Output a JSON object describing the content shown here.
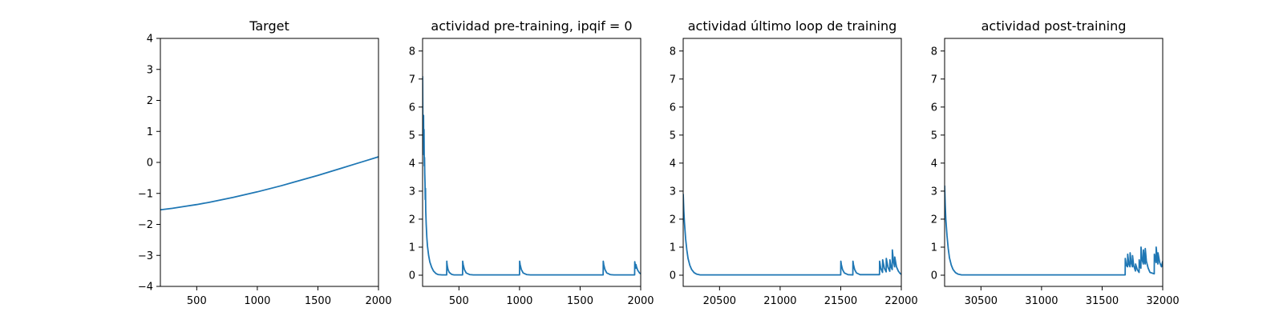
{
  "chart_data": [
    {
      "type": "line",
      "title": "Target",
      "xlim": [
        200,
        2000
      ],
      "ylim": [
        -4,
        4
      ],
      "xticks": [
        500,
        1000,
        1500,
        2000
      ],
      "xtick_labels": [
        "500",
        "1000",
        "1500",
        "2000"
      ],
      "yticks": [
        -4,
        -3,
        -2,
        -1,
        0,
        1,
        2,
        3,
        4
      ],
      "ytick_labels": [
        "−4",
        "−3",
        "−2",
        "−1",
        "0",
        "1",
        "2",
        "3",
        "4"
      ],
      "color": "#1f77b4",
      "series": [
        {
          "x": [
            200,
            300,
            400,
            500,
            600,
            700,
            800,
            900,
            1000,
            1100,
            1200,
            1300,
            1400,
            1500,
            1600,
            1700,
            1800,
            1900,
            2000
          ],
          "y": [
            -1.53,
            -1.48,
            -1.42,
            -1.36,
            -1.29,
            -1.21,
            -1.13,
            -1.04,
            -0.95,
            -0.85,
            -0.75,
            -0.64,
            -0.53,
            -0.42,
            -0.3,
            -0.18,
            -0.06,
            0.06,
            0.18
          ]
        }
      ]
    },
    {
      "type": "line",
      "title": "actividad pre-training, ipqif = 0",
      "xlim": [
        200,
        2000
      ],
      "ylim": [
        -0.4,
        8.45
      ],
      "xticks": [
        500,
        1000,
        1500,
        2000
      ],
      "xtick_labels": [
        "500",
        "1000",
        "1500",
        "2000"
      ],
      "yticks": [
        0,
        1,
        2,
        3,
        4,
        5,
        6,
        7,
        8
      ],
      "ytick_labels": [
        "0",
        "1",
        "2",
        "3",
        "4",
        "5",
        "6",
        "7",
        "8"
      ],
      "color": "#1f77b4",
      "series": [
        {
          "x": [
            200,
            202,
            205,
            208,
            210,
            212,
            214,
            216,
            218,
            220,
            222,
            224,
            226,
            230,
            235,
            240,
            250,
            260,
            275,
            290,
            310,
            330,
            360,
            399,
            400,
            401,
            405,
            410,
            420,
            440,
            460,
            530,
            531,
            535,
            545,
            560,
            590,
            620,
            1000,
            1001,
            1005,
            1015,
            1030,
            1060,
            1090,
            1690,
            1691,
            1695,
            1705,
            1720,
            1750,
            1780,
            1950,
            1951,
            1955,
            1960,
            1961,
            1965,
            1975,
            1990,
            2000
          ],
          "y": [
            7.1,
            5.6,
            4.9,
            5.7,
            4.3,
            5.2,
            3.9,
            4.2,
            3.6,
            3.3,
            2.7,
            3.1,
            2.3,
            1.8,
            1.35,
            1.05,
            0.7,
            0.47,
            0.28,
            0.15,
            0.06,
            0.02,
            0.01,
            0.01,
            0.5,
            0.42,
            0.3,
            0.2,
            0.1,
            0.03,
            0.01,
            0.01,
            0.5,
            0.38,
            0.2,
            0.08,
            0.02,
            0.01,
            0.01,
            0.5,
            0.38,
            0.2,
            0.08,
            0.02,
            0.01,
            0.01,
            0.5,
            0.38,
            0.2,
            0.08,
            0.02,
            0.01,
            0.01,
            0.48,
            0.35,
            0.25,
            0.38,
            0.3,
            0.18,
            0.08,
            0.05
          ]
        }
      ]
    },
    {
      "type": "line",
      "title": "actividad último loop de training",
      "xlim": [
        20200,
        22000
      ],
      "ylim": [
        -0.4,
        8.45
      ],
      "xticks": [
        20500,
        21000,
        21500,
        22000
      ],
      "xtick_labels": [
        "20500",
        "21000",
        "21500",
        "22000"
      ],
      "yticks": [
        0,
        1,
        2,
        3,
        4,
        5,
        6,
        7,
        8
      ],
      "ytick_labels": [
        "0",
        "1",
        "2",
        "3",
        "4",
        "5",
        "6",
        "7",
        "8"
      ],
      "color": "#1f77b4",
      "series": [
        {
          "x": [
            20200,
            20205,
            20210,
            20220,
            20230,
            20240,
            20255,
            20270,
            20290,
            20310,
            20340,
            20380,
            21500,
            21501,
            21505,
            21515,
            21530,
            21560,
            21600,
            21601,
            21605,
            21615,
            21630,
            21660,
            21820,
            21821,
            21830,
            21845,
            21846,
            21860,
            21875,
            21876,
            21890,
            21905,
            21906,
            21915,
            21925,
            21926,
            21935,
            21945,
            21946,
            21960,
            21975,
            21990,
            22000
          ],
          "y": [
            2.9,
            2.3,
            1.9,
            1.3,
            0.9,
            0.6,
            0.35,
            0.2,
            0.09,
            0.04,
            0.01,
            0.01,
            0.01,
            0.5,
            0.38,
            0.2,
            0.08,
            0.02,
            0.01,
            0.5,
            0.38,
            0.2,
            0.08,
            0.02,
            0.02,
            0.5,
            0.25,
            0.1,
            0.55,
            0.25,
            0.12,
            0.6,
            0.28,
            0.14,
            0.55,
            0.3,
            0.2,
            0.9,
            0.5,
            0.3,
            0.65,
            0.3,
            0.15,
            0.06,
            0.03
          ]
        }
      ]
    },
    {
      "type": "line",
      "title": "actividad post-training",
      "xlim": [
        30200,
        32000
      ],
      "ylim": [
        -0.4,
        8.45
      ],
      "xticks": [
        30500,
        31000,
        31500,
        32000
      ],
      "xtick_labels": [
        "30500",
        "31000",
        "31500",
        "32000"
      ],
      "yticks": [
        0,
        1,
        2,
        3,
        4,
        5,
        6,
        7,
        8
      ],
      "ytick_labels": [
        "0",
        "1",
        "2",
        "3",
        "4",
        "5",
        "6",
        "7",
        "8"
      ],
      "color": "#1f77b4",
      "series": [
        {
          "x": [
            30200,
            30205,
            30210,
            30220,
            30230,
            30240,
            30255,
            30270,
            30290,
            30310,
            30340,
            30380,
            31690,
            31691,
            31700,
            31710,
            31711,
            31720,
            31730,
            31731,
            31740,
            31750,
            31751,
            31760,
            31775,
            31776,
            31790,
            31805,
            31806,
            31815,
            31820,
            31821,
            31830,
            31840,
            31841,
            31850,
            31855,
            31856,
            31865,
            31880,
            31895,
            31930,
            31931,
            31945,
            31946,
            31955,
            31960,
            31961,
            31975,
            31990,
            32000
          ],
          "y": [
            3.2,
            2.5,
            2.0,
            1.4,
            0.95,
            0.62,
            0.36,
            0.2,
            0.09,
            0.04,
            0.01,
            0.01,
            0.01,
            0.6,
            0.35,
            0.3,
            0.75,
            0.4,
            0.3,
            0.8,
            0.45,
            0.3,
            0.7,
            0.35,
            0.15,
            0.4,
            0.2,
            0.1,
            0.55,
            0.3,
            0.25,
            1.0,
            0.55,
            0.4,
            0.9,
            0.5,
            0.4,
            0.95,
            0.5,
            0.25,
            0.1,
            0.05,
            0.75,
            0.45,
            1.0,
            0.55,
            0.4,
            0.8,
            0.45,
            0.3,
            0.5
          ]
        }
      ]
    }
  ]
}
